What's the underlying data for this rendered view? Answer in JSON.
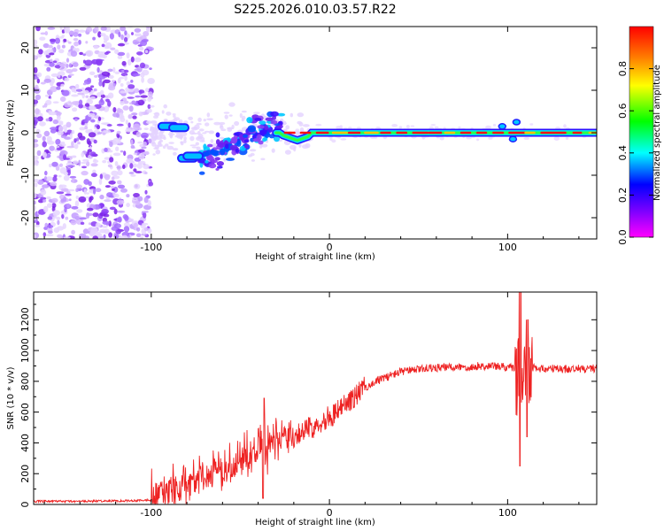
{
  "title": "S225.2026.010.03.57.R22",
  "chart_data": [
    {
      "type": "heatmap",
      "name": "spectrogram",
      "title": "S225.2026.010.03.57.R22",
      "xlabel": "Height of straight line (km)",
      "ylabel": "Frequency (Hz)",
      "xlim": [
        -166,
        150
      ],
      "ylim": [
        -25,
        25
      ],
      "xticks": [
        -100,
        0,
        100
      ],
      "yticks": [
        -20,
        -10,
        0,
        10,
        20
      ],
      "colorbar": {
        "label": "Normalized spectral amplitude",
        "range": [
          0,
          1
        ],
        "ticks": [
          0.0,
          0.2,
          0.4,
          0.6,
          0.8
        ],
        "colormap": [
          "#ff00ff",
          "#8000ff",
          "#0000ff",
          "#00ffff",
          "#00ff00",
          "#ffff00",
          "#ff8000",
          "#ff0000"
        ]
      },
      "features": {
        "noise_region_x": [
          -166,
          -100
        ],
        "tone_frequency_hz": 0,
        "tone_start_km": -100,
        "tone_end_km": 150,
        "scatter_region_x": [
          -70,
          -30
        ],
        "scatter_frequency_range_hz": [
          -7,
          8
        ]
      }
    },
    {
      "type": "line",
      "name": "snr",
      "xlabel": "Height of straight line (km)",
      "ylabel": "SNR (10 * v/v)",
      "xlim": [
        -166,
        150
      ],
      "ylim": [
        0,
        1380
      ],
      "xticks": [
        -100,
        0,
        100
      ],
      "yticks": [
        0,
        200,
        400,
        600,
        800,
        1000,
        1200
      ],
      "series": [
        {
          "name": "SNR",
          "color": "#ee2222",
          "x": [
            -166,
            -140,
            -110,
            -100,
            -90,
            -80,
            -70,
            -60,
            -50,
            -40,
            -30,
            -20,
            -10,
            0,
            10,
            20,
            30,
            40,
            50,
            60,
            70,
            80,
            90,
            100,
            105,
            110,
            115,
            120,
            130,
            140,
            150
          ],
          "values": [
            20,
            20,
            25,
            30,
            55,
            90,
            140,
            200,
            250,
            320,
            380,
            450,
            500,
            570,
            660,
            760,
            820,
            860,
            880,
            890,
            890,
            895,
            900,
            890,
            880,
            870,
            890,
            880,
            880,
            880,
            885
          ],
          "spike_peaks": [
            {
              "x": 107,
              "min": 250,
              "max": 1380
            },
            {
              "x": 111,
              "min": 440,
              "max": 1200
            },
            {
              "x": -37,
              "min": 40,
              "max": 690
            }
          ],
          "noise_amplitude": [
            {
              "x": [
                -166,
                -100
              ],
              "amp": 12
            },
            {
              "x": [
                -100,
                -20
              ],
              "amp": 200
            },
            {
              "x": [
                -20,
                20
              ],
              "amp": 120
            },
            {
              "x": [
                20,
                150
              ],
              "amp": 45
            }
          ]
        }
      ]
    }
  ]
}
